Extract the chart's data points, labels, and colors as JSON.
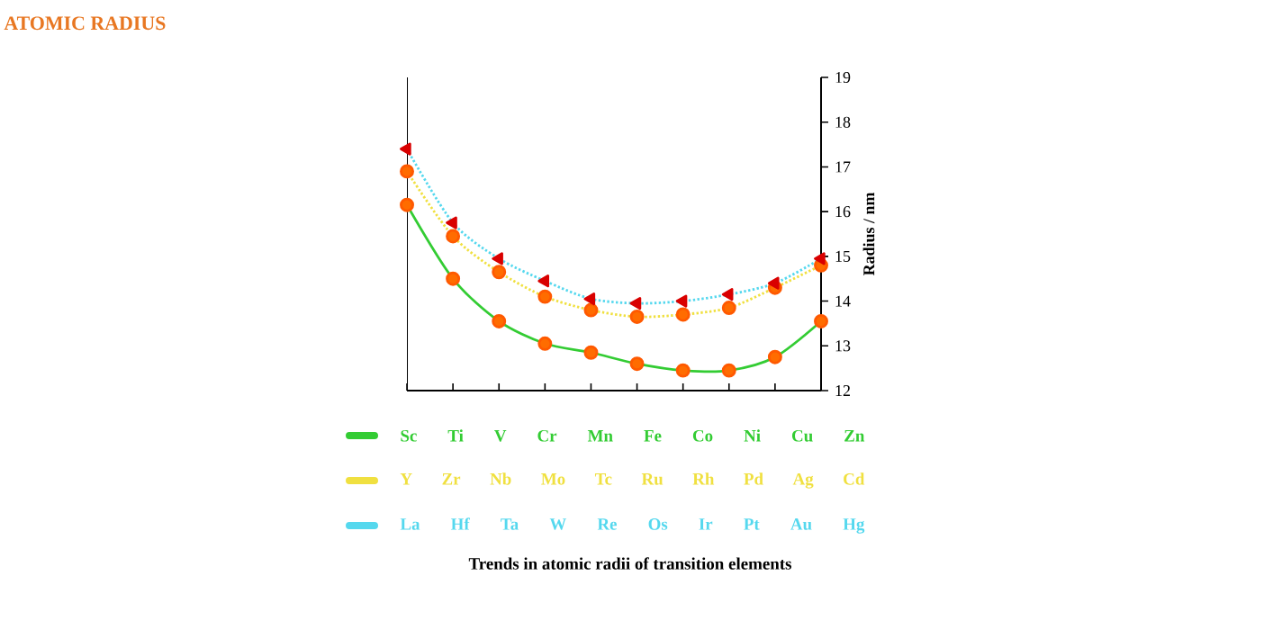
{
  "chart_data": {
    "type": "line",
    "title": "ATOMIC RADIUS",
    "ylabel": "Radius / nm",
    "annotations": [
      "Trends in atomic radii of transition elements"
    ],
    "categories": [
      null,
      null,
      null,
      null,
      null,
      null,
      null,
      null,
      null,
      null
    ],
    "ylim": [
      12,
      19
    ],
    "yticks": [
      12,
      13,
      14,
      15,
      16,
      17,
      18,
      19
    ],
    "legend": "bottom",
    "grid": false,
    "series": [
      {
        "name": "Sc Ti V Cr Mn Fe Co Ni Cu Zn",
        "color": "#33cc33",
        "line_style": "solid",
        "marker": "circle",
        "values": [
          16.15,
          14.5,
          13.55,
          13.05,
          12.85,
          12.6,
          12.45,
          12.45,
          12.75,
          13.55
        ]
      },
      {
        "name": "Y Zr Nb Mo Tc Ru Rh Pd Ag Cd",
        "color": "#f0e040",
        "line_style": "dotted",
        "marker": "circle",
        "values": [
          16.9,
          15.45,
          14.65,
          14.1,
          13.8,
          13.65,
          13.7,
          13.85,
          14.3,
          14.8
        ]
      },
      {
        "name": "La Hf Ta W Re Os Ir Pt Au Hg",
        "color": "#55d8ee",
        "line_style": "dotted",
        "marker": "triangle",
        "values": [
          17.4,
          15.75,
          14.95,
          14.45,
          14.05,
          13.95,
          14.0,
          14.15,
          14.4,
          14.95
        ]
      }
    ]
  }
}
